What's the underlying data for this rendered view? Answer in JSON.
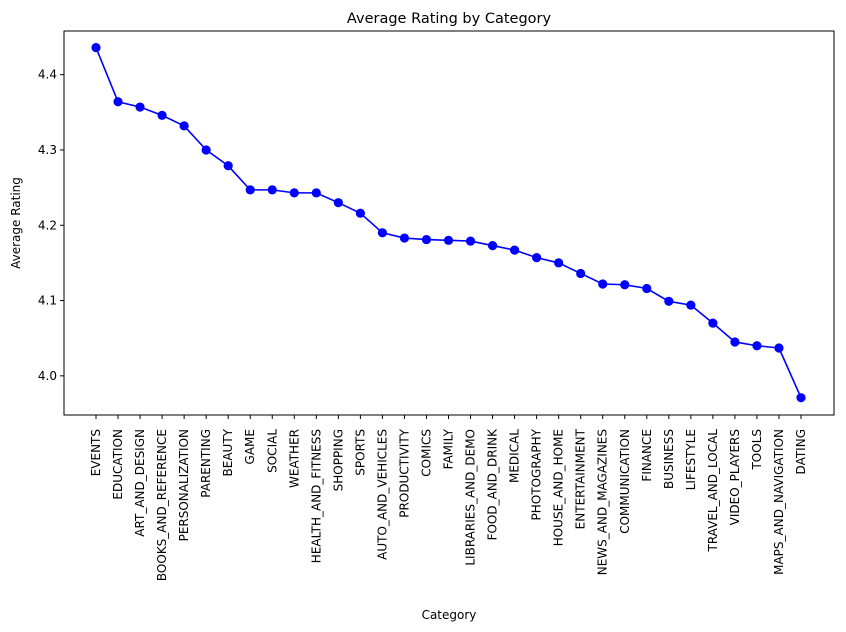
{
  "chart_data": {
    "type": "line",
    "title": "Average Rating by Category",
    "xlabel": "Category",
    "ylabel": "Average Rating",
    "ylim": [
      3.948,
      4.458
    ],
    "yticks": [
      4.0,
      4.1,
      4.2,
      4.3,
      4.4
    ],
    "ytick_labels": [
      "4.0",
      "4.1",
      "4.2",
      "4.3",
      "4.4"
    ],
    "grid": false,
    "marker": "circle",
    "colors": {
      "series": "#0000ff",
      "axes": "#000000",
      "background": "#ffffff"
    },
    "categories": [
      "EVENTS",
      "EDUCATION",
      "ART_AND_DESIGN",
      "BOOKS_AND_REFERENCE",
      "PERSONALIZATION",
      "PARENTING",
      "BEAUTY",
      "GAME",
      "SOCIAL",
      "WEATHER",
      "HEALTH_AND_FITNESS",
      "SHOPPING",
      "SPORTS",
      "AUTO_AND_VEHICLES",
      "PRODUCTIVITY",
      "COMICS",
      "FAMILY",
      "LIBRARIES_AND_DEMO",
      "FOOD_AND_DRINK",
      "MEDICAL",
      "PHOTOGRAPHY",
      "HOUSE_AND_HOME",
      "ENTERTAINMENT",
      "NEWS_AND_MAGAZINES",
      "COMMUNICATION",
      "FINANCE",
      "BUSINESS",
      "LIFESTYLE",
      "TRAVEL_AND_LOCAL",
      "VIDEO_PLAYERS",
      "TOOLS",
      "MAPS_AND_NAVIGATION",
      "DATING"
    ],
    "values": [
      4.436,
      4.364,
      4.357,
      4.346,
      4.332,
      4.3,
      4.279,
      4.247,
      4.247,
      4.243,
      4.243,
      4.23,
      4.216,
      4.19,
      4.183,
      4.181,
      4.18,
      4.179,
      4.173,
      4.167,
      4.157,
      4.15,
      4.136,
      4.122,
      4.121,
      4.116,
      4.099,
      4.094,
      4.07,
      4.045,
      4.04,
      4.037,
      3.971
    ]
  }
}
